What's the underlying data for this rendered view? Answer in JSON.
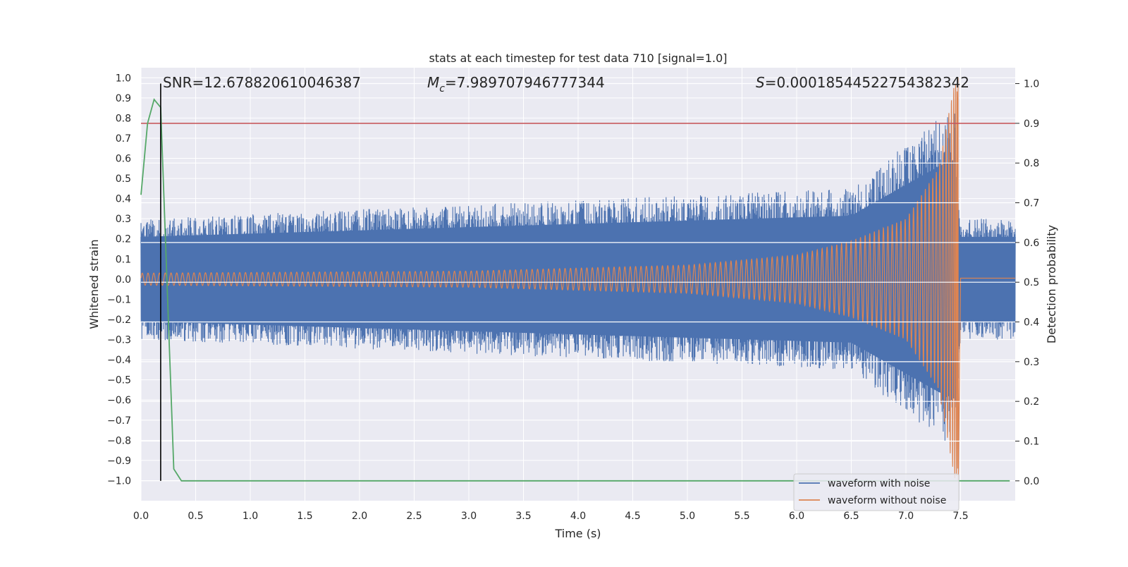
{
  "chart_data": {
    "type": "line",
    "title": "stats at each timestep for test data 710 [signal=1.0]",
    "xlabel": "Time (s)",
    "ylabel_left": "Whitened strain",
    "ylabel_right": "Detection probability",
    "xlim": [
      0.0,
      8.0
    ],
    "ylim_left": [
      -1.1,
      1.05
    ],
    "ylim_right": [
      -0.05,
      1.04
    ],
    "x_ticks": [
      "0.0",
      "0.5",
      "1.0",
      "1.5",
      "2.0",
      "2.5",
      "3.0",
      "3.5",
      "4.0",
      "4.5",
      "5.0",
      "5.5",
      "6.0",
      "6.5",
      "7.0",
      "7.5"
    ],
    "y_left_ticks": [
      "1.0",
      "0.9",
      "0.8",
      "0.7",
      "0.6",
      "0.5",
      "0.4",
      "0.3",
      "0.2",
      "0.1",
      "0.0",
      "−0.1",
      "−0.2",
      "−0.3",
      "−0.4",
      "−0.5",
      "−0.6",
      "−0.7",
      "−0.8",
      "−0.9",
      "−1.0"
    ],
    "y_right_ticks": [
      "1.0",
      "0.9",
      "0.8",
      "0.7",
      "0.6",
      "0.5",
      "0.4",
      "0.3",
      "0.2",
      "0.1",
      "0.0"
    ],
    "grid": true,
    "legend_position": "bottom-right",
    "annotations": {
      "snr": "SNR=12.678820610046387",
      "mc_symbol": "M",
      "mc_sub": "c",
      "mc_value": "=7.989707946777344",
      "s_symbol": "S",
      "s_value": "=0.00018544522754382342"
    },
    "series": [
      {
        "name": "waveform with noise",
        "color": "#4c72b0",
        "axis": "left",
        "description_points": [
          [
            0.0,
            0.3
          ],
          [
            6.5,
            0.45
          ],
          [
            7.3,
            0.8
          ],
          [
            7.45,
            0.85
          ],
          [
            7.5,
            0.3
          ],
          [
            8.0,
            0.3
          ]
        ]
      },
      {
        "name": "waveform without noise",
        "color": "#dd8452",
        "axis": "left",
        "envelope": [
          [
            0.0,
            0.03
          ],
          [
            3.0,
            0.04
          ],
          [
            5.0,
            0.07
          ],
          [
            6.0,
            0.12
          ],
          [
            6.5,
            0.19
          ],
          [
            7.0,
            0.3
          ],
          [
            7.3,
            0.55
          ],
          [
            7.45,
            1.0
          ]
        ],
        "merger_time": 7.48,
        "post_merger_offset": 0.005
      },
      {
        "name": "",
        "color": "#55a868",
        "axis": "right",
        "points": [
          [
            0.0,
            0.72
          ],
          [
            0.06,
            0.9
          ],
          [
            0.12,
            0.96
          ],
          [
            0.18,
            0.94
          ],
          [
            0.3,
            0.03
          ],
          [
            0.37,
            0.0
          ],
          [
            7.95,
            0.0
          ]
        ]
      }
    ],
    "threshold_line": {
      "value": 0.9,
      "axis": "right",
      "color": "#c44e52"
    },
    "marker_line": {
      "x": 0.18,
      "y_from": 0.0,
      "y_to": 1.0,
      "axis": "right",
      "color": "#000000"
    }
  },
  "colors": {
    "plot_bg": "#eaeaf2",
    "grid": "#ffffff",
    "noise": "#4c72b0",
    "clean": "#dd8452",
    "prob": "#55a868",
    "threshold": "#c44e52"
  }
}
